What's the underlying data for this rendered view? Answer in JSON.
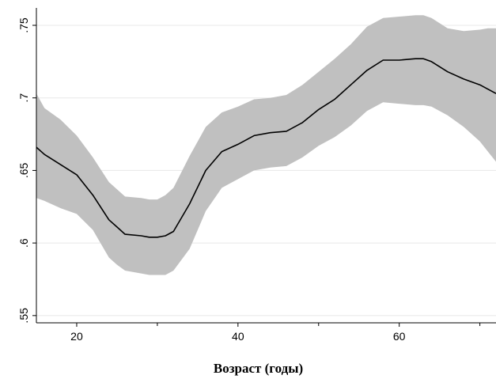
{
  "chart_data": {
    "type": "area",
    "xlabel": "Возраст (годы)",
    "ylabel": "",
    "xlim": [
      15,
      72
    ],
    "ylim": [
      0.545,
      0.762
    ],
    "x_ticks": [
      {
        "value": 20,
        "label": "20"
      },
      {
        "value": 40,
        "label": "40"
      },
      {
        "value": 60,
        "label": "60"
      }
    ],
    "x_minor_ticks": [
      30,
      50,
      70
    ],
    "y_ticks": [
      {
        "value": 0.55,
        "label": ".55"
      },
      {
        "value": 0.6,
        "label": ".6"
      },
      {
        "value": 0.65,
        "label": ".65"
      },
      {
        "value": 0.7,
        "label": ".7"
      },
      {
        "value": 0.75,
        "label": ".75"
      }
    ],
    "grid": true,
    "colors": {
      "band": "#c0c0c0",
      "line": "#000000",
      "grid": "#e8e8e8",
      "axis": "#000000"
    },
    "series": [
      {
        "x": [
          15,
          16,
          18,
          20,
          22,
          24,
          25,
          26,
          28,
          29,
          30,
          31,
          32,
          34,
          36,
          38,
          40,
          42,
          44,
          46,
          48,
          50,
          52,
          54,
          56,
          58,
          60,
          62,
          63,
          64,
          66,
          68,
          70,
          71,
          72
        ],
        "estimate": [
          0.666,
          0.661,
          0.654,
          0.647,
          0.633,
          0.616,
          0.611,
          0.606,
          0.605,
          0.604,
          0.604,
          0.605,
          0.608,
          0.627,
          0.65,
          0.663,
          0.668,
          0.674,
          0.676,
          0.677,
          0.683,
          0.692,
          0.699,
          0.709,
          0.719,
          0.726,
          0.726,
          0.727,
          0.727,
          0.725,
          0.718,
          0.713,
          0.709,
          0.706,
          0.703
        ],
        "upper": [
          0.703,
          0.693,
          0.685,
          0.674,
          0.659,
          0.642,
          0.637,
          0.632,
          0.631,
          0.63,
          0.63,
          0.633,
          0.638,
          0.66,
          0.68,
          0.69,
          0.694,
          0.699,
          0.7,
          0.702,
          0.709,
          0.718,
          0.727,
          0.737,
          0.749,
          0.755,
          0.756,
          0.757,
          0.757,
          0.755,
          0.748,
          0.746,
          0.747,
          0.748,
          0.748
        ],
        "lower": [
          0.631,
          0.629,
          0.624,
          0.62,
          0.609,
          0.59,
          0.585,
          0.581,
          0.579,
          0.578,
          0.578,
          0.578,
          0.581,
          0.596,
          0.622,
          0.638,
          0.644,
          0.65,
          0.652,
          0.653,
          0.659,
          0.667,
          0.673,
          0.681,
          0.691,
          0.697,
          0.696,
          0.695,
          0.695,
          0.694,
          0.688,
          0.68,
          0.67,
          0.663,
          0.656
        ]
      }
    ]
  }
}
